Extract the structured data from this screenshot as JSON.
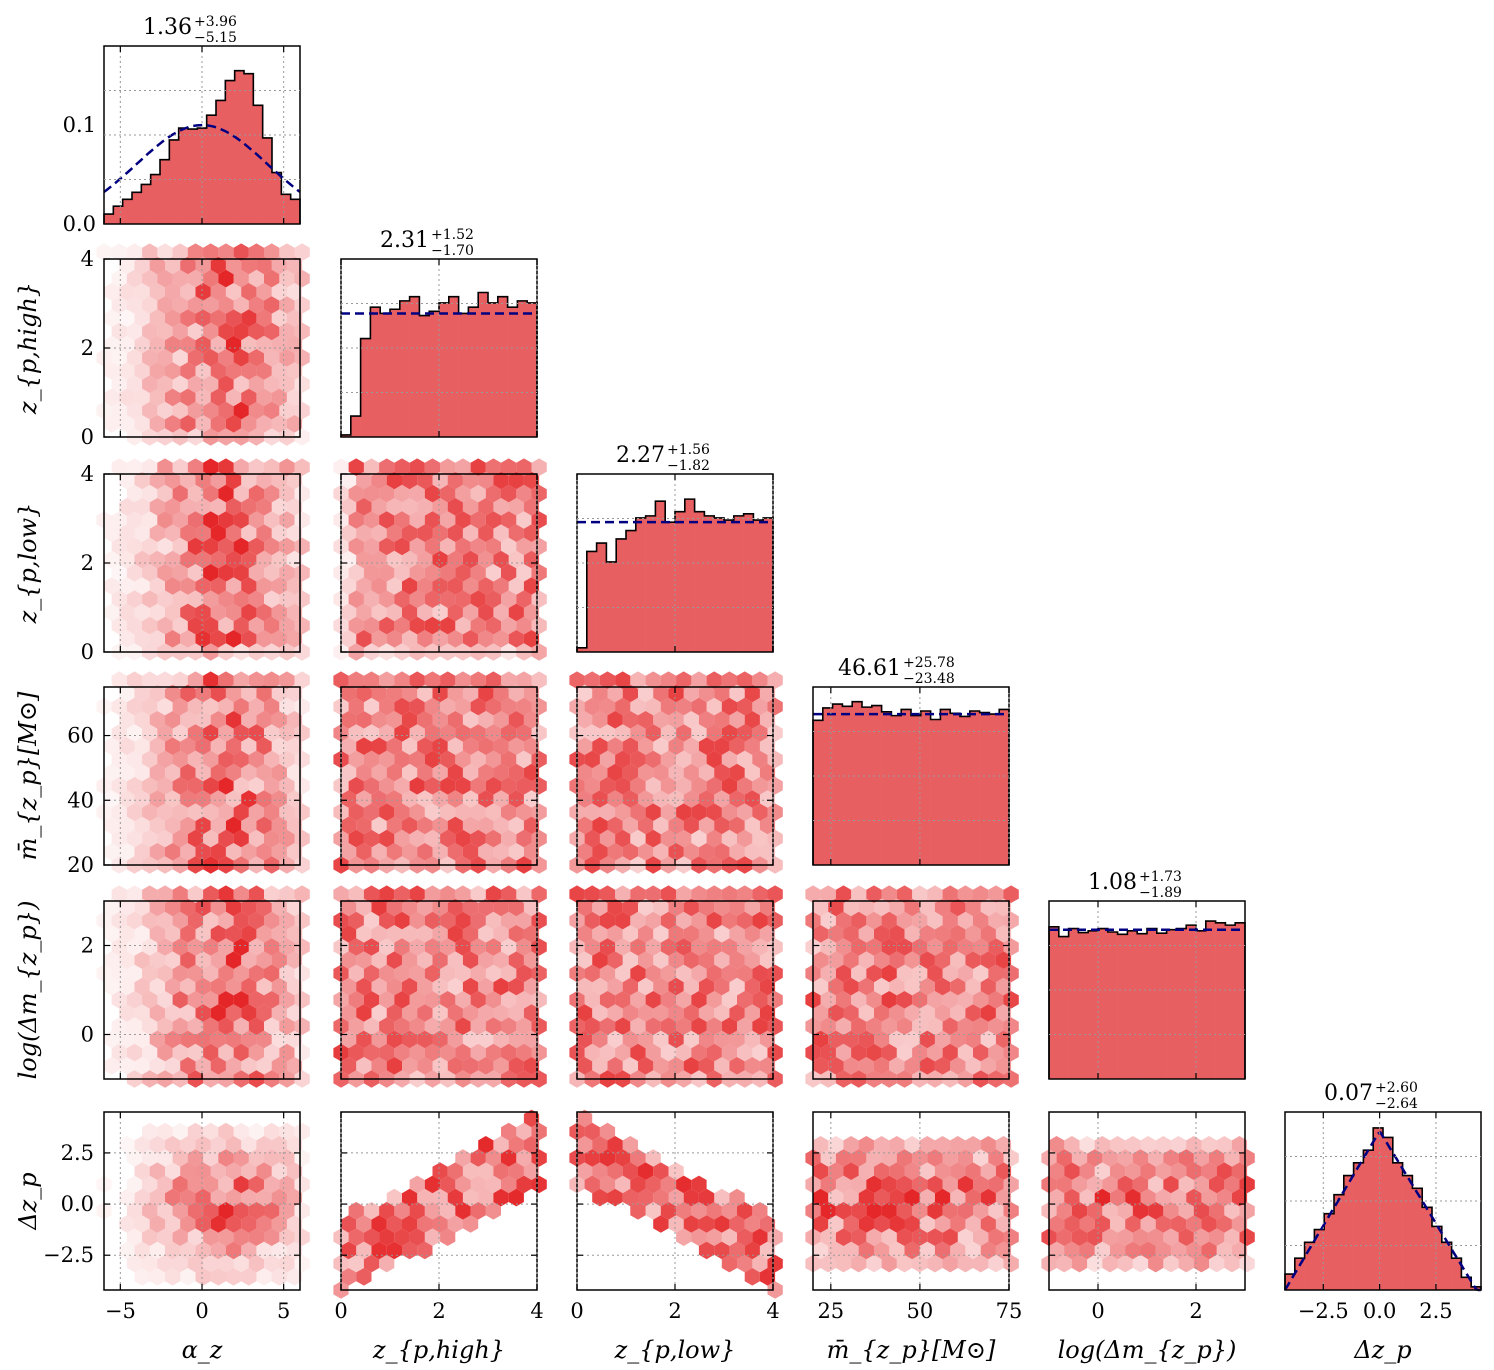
{
  "chart_data": {
    "type": "corner",
    "colors": {
      "hist_fill": "#e85f62",
      "hex_base": "#e31a1c",
      "prior_line": "#000080",
      "grid": "#999999"
    },
    "parameters": [
      {
        "key": "alpha_z",
        "label": "α_z",
        "range": [
          -6,
          6
        ],
        "ticks": [
          -5,
          0,
          5
        ],
        "tick_labels": [
          "−5",
          "0",
          "5"
        ],
        "y_ticks": [],
        "y_tick_labels": [],
        "title_value": "1.36",
        "title_plus": "+3.96",
        "title_minus": "−5.15",
        "hist_ylim": [
          0,
          0.18
        ],
        "hist_yticks": [
          0,
          0.1
        ],
        "hist_ytick_labels": [
          "0.0",
          "0.1"
        ],
        "hist": [
          0.01,
          0.018,
          0.025,
          0.032,
          0.04,
          0.05,
          0.065,
          0.085,
          0.097,
          0.096,
          0.097,
          0.11,
          0.125,
          0.145,
          0.155,
          0.152,
          0.12,
          0.087,
          0.052,
          0.03,
          0.025
        ]
      },
      {
        "key": "z_p_high",
        "label": "z_{p,high}",
        "range": [
          0,
          4
        ],
        "ticks": [
          0,
          2,
          4
        ],
        "tick_labels": [
          "0",
          "2",
          "4"
        ],
        "y_ticks": [
          0,
          2,
          4
        ],
        "y_tick_labels": [
          "0",
          "2",
          "4"
        ],
        "title_value": "2.31",
        "title_plus": "+1.52",
        "title_minus": "−1.70",
        "hist_ylim": [
          0,
          4.25
        ],
        "hist_yticks": [],
        "hist_ytick_labels": [],
        "hist": [
          0.05,
          0.5,
          2.35,
          3.1,
          2.95,
          3.05,
          3.25,
          3.35,
          2.9,
          3.0,
          3.2,
          3.35,
          2.95,
          3.1,
          3.45,
          3.2,
          3.35,
          3.1,
          3.25,
          3.2
        ]
      },
      {
        "key": "z_p_low",
        "label": "z_{p,low}",
        "range": [
          0,
          4
        ],
        "ticks": [
          0,
          2,
          4
        ],
        "tick_labels": [
          "0",
          "2",
          "4"
        ],
        "y_ticks": [
          0,
          2,
          4
        ],
        "y_tick_labels": [
          "0",
          "2",
          "4"
        ],
        "title_value": "2.27",
        "title_plus": "+1.56",
        "title_minus": "−1.82",
        "hist_ylim": [
          0,
          4.25
        ],
        "hist_yticks": [],
        "hist_ytick_labels": [],
        "hist": [
          0.1,
          2.4,
          2.6,
          2.15,
          2.7,
          2.9,
          3.2,
          3.25,
          3.6,
          3.1,
          3.35,
          3.65,
          3.35,
          3.25,
          3.2,
          3.15,
          3.25,
          3.3,
          3.15,
          3.2
        ]
      },
      {
        "key": "m_bar",
        "label": "m̄_{z_p}[M⊙]",
        "range": [
          20,
          75
        ],
        "ticks": [
          25,
          50,
          75
        ],
        "tick_labels": [
          "25",
          "50",
          "75"
        ],
        "y_ticks": [
          20,
          40,
          60
        ],
        "y_tick_labels": [
          "20",
          "40",
          "60"
        ],
        "title_value": "46.61",
        "title_plus": "+25.78",
        "title_minus": "−23.48",
        "hist_ylim": [
          0,
          0.023
        ],
        "hist_yticks": [],
        "hist_ytick_labels": [],
        "hist": [
          0.0187,
          0.0203,
          0.0208,
          0.0205,
          0.0211,
          0.0204,
          0.0206,
          0.0198,
          0.0193,
          0.0201,
          0.0193,
          0.0199,
          0.0188,
          0.0201,
          0.0196,
          0.0192,
          0.0199,
          0.0197,
          0.0195,
          0.0201
        ]
      },
      {
        "key": "log_dm",
        "label": "log(Δm_{z_p})",
        "range": [
          -1,
          3
        ],
        "ticks": [
          0,
          2
        ],
        "tick_labels": [
          "0",
          "2"
        ],
        "y_ticks": [
          0,
          2
        ],
        "y_tick_labels": [
          "0",
          "2"
        ],
        "title_value": "1.08",
        "title_plus": "+1.73",
        "title_minus": "−1.89",
        "hist_ylim": [
          0,
          0.31
        ],
        "hist_yticks": [],
        "hist_ytick_labels": [],
        "hist": [
          0.265,
          0.248,
          0.262,
          0.255,
          0.258,
          0.262,
          0.256,
          0.252,
          0.258,
          0.253,
          0.262,
          0.254,
          0.26,
          0.262,
          0.268,
          0.258,
          0.275,
          0.272,
          0.268,
          0.272
        ]
      },
      {
        "key": "dz_p",
        "label": "Δz_p",
        "range": [
          -4.2,
          4.5
        ],
        "ticks": [
          -2.5,
          0.0,
          2.5
        ],
        "tick_labels": [
          "−2.5",
          "0.0",
          "2.5"
        ],
        "y_ticks": [
          -2.5,
          0.0,
          2.5
        ],
        "y_tick_labels": [
          "−2.5",
          "0.0",
          "2.5"
        ],
        "title_value": "0.07",
        "title_plus": "+2.60",
        "title_minus": "−2.64",
        "hist_ylim": [
          0,
          0.28
        ],
        "hist_yticks": [],
        "hist_ytick_labels": [],
        "hist": [
          0.025,
          0.05,
          0.075,
          0.095,
          0.12,
          0.15,
          0.18,
          0.2,
          0.22,
          0.255,
          0.24,
          0.2,
          0.18,
          0.16,
          0.13,
          0.1,
          0.075,
          0.05,
          0.02,
          0.005
        ]
      }
    ],
    "priors": [
      {
        "type": "gaussian",
        "mean": 0,
        "peak": 0.1,
        "sigma": 4
      },
      {
        "type": "flat",
        "value": 2.95
      },
      {
        "type": "flat",
        "value": 3.1
      },
      {
        "type": "flat",
        "value": 0.0195
      },
      {
        "type": "flat",
        "value": 0.26
      },
      {
        "type": "triangular",
        "peak": 0.25,
        "min": -4.2,
        "max": 4.3
      }
    ]
  }
}
